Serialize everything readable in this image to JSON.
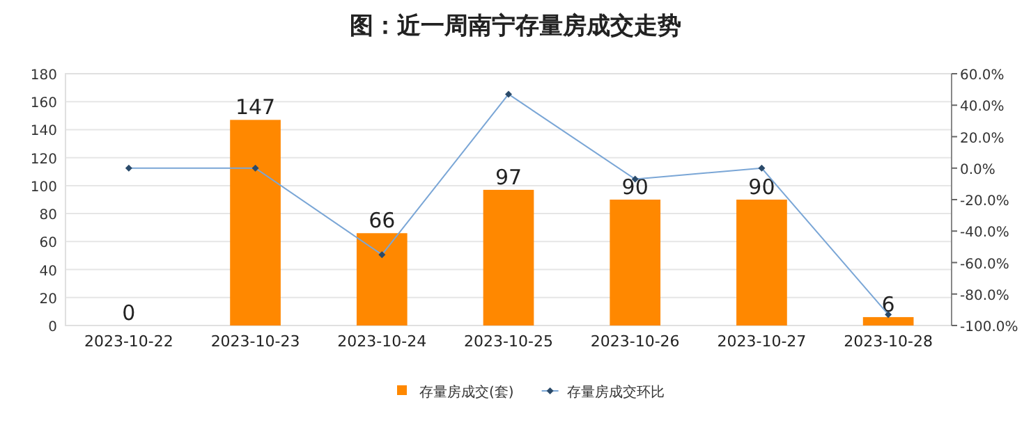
{
  "chart_data": {
    "type": "bar",
    "title": "图：近一周南宁存量房成交走势",
    "categories": [
      "2023-10-22",
      "2023-10-23",
      "2023-10-24",
      "2023-10-25",
      "2023-10-26",
      "2023-10-27",
      "2023-10-28"
    ],
    "series": [
      {
        "name": "存量房成交(套)",
        "color": "#ff8800",
        "values": [
          0,
          147,
          66,
          97,
          90,
          90,
          6
        ],
        "value_labels": [
          "0",
          "147",
          "66",
          "97",
          "90",
          "90",
          "6"
        ]
      },
      {
        "name": "存量房成交环比",
        "type": "line",
        "axis": "y2",
        "color": "#7aa6d6",
        "marker": "diamond",
        "values": [
          0,
          0,
          -55,
          47,
          -7,
          0,
          -93
        ]
      }
    ],
    "ylim": [
      0,
      180
    ],
    "yticks": [
      0,
      20,
      40,
      60,
      80,
      100,
      120,
      140,
      160,
      180
    ],
    "y2lim": [
      -100,
      60
    ],
    "y2ticks": [
      {
        "value": -100,
        "label": "-100.0%"
      },
      {
        "value": -80,
        "label": "-80.0%"
      },
      {
        "value": -60,
        "label": "-60.0%"
      },
      {
        "value": -40,
        "label": "-40.0%"
      },
      {
        "value": -20,
        "label": "-20.0%"
      },
      {
        "value": 0,
        "label": "0.0%"
      },
      {
        "value": 20,
        "label": "20.0%"
      },
      {
        "value": 40,
        "label": "40.0%"
      },
      {
        "value": 60,
        "label": "60.0%"
      }
    ],
    "grid": "y",
    "legend": "bottom"
  }
}
